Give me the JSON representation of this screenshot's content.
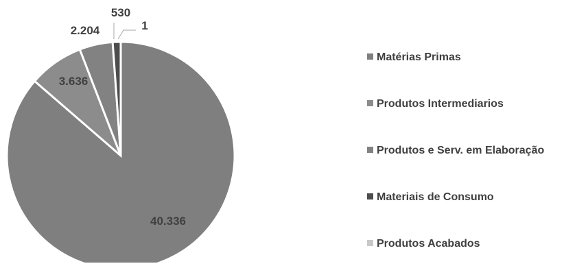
{
  "chart_data": {
    "type": "pie",
    "title": "",
    "slices": [
      {
        "label": "Matérias Primas",
        "value": 40336,
        "display": "40.336",
        "color": "#7f7f7f"
      },
      {
        "label": "Produtos Intermediarios",
        "value": 3636,
        "display": "3.636",
        "color": "#8c8c8c"
      },
      {
        "label": "Produtos e Serv. em Elaboração",
        "value": 2204,
        "display": "2.204",
        "color": "#828282"
      },
      {
        "label": "Materiais de Consumo",
        "value": 530,
        "display": "530",
        "color": "#4d4d4d"
      },
      {
        "label": "Produtos Acabados",
        "value": 1,
        "display": "1",
        "color": "#c8c8c8"
      }
    ],
    "legend_position": "right"
  }
}
